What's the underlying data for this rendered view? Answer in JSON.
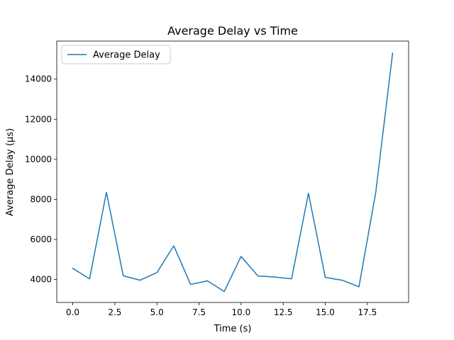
{
  "chart_data": {
    "type": "line",
    "title": "Average Delay vs Time",
    "xlabel": "Time (s)",
    "ylabel": "Average Delay (µs)",
    "xlim": [
      -0.95,
      19.95
    ],
    "ylim": [
      2850,
      15900
    ],
    "xticks": [
      0.0,
      2.5,
      5.0,
      7.5,
      10.0,
      12.5,
      15.0,
      17.5
    ],
    "xtick_labels": [
      "0.0",
      "2.5",
      "5.0",
      "7.5",
      "10.0",
      "12.5",
      "15.0",
      "17.5"
    ],
    "yticks": [
      4000,
      6000,
      8000,
      10000,
      12000,
      14000
    ],
    "ytick_labels": [
      "4000",
      "6000",
      "8000",
      "10000",
      "12000",
      "14000"
    ],
    "grid": false,
    "legend_position": "top-left",
    "series": [
      {
        "name": "Average Delay",
        "color": "#1f77b4",
        "x": [
          0,
          1,
          2,
          3,
          4,
          5,
          6,
          7,
          8,
          9,
          10,
          11,
          12,
          13,
          14,
          15,
          16,
          17,
          18,
          19
        ],
        "y": [
          4550,
          4030,
          8350,
          4180,
          3960,
          4340,
          5680,
          3750,
          3930,
          3400,
          5150,
          4170,
          4120,
          4030,
          8300,
          4100,
          3960,
          3630,
          8350,
          15300
        ]
      }
    ]
  }
}
